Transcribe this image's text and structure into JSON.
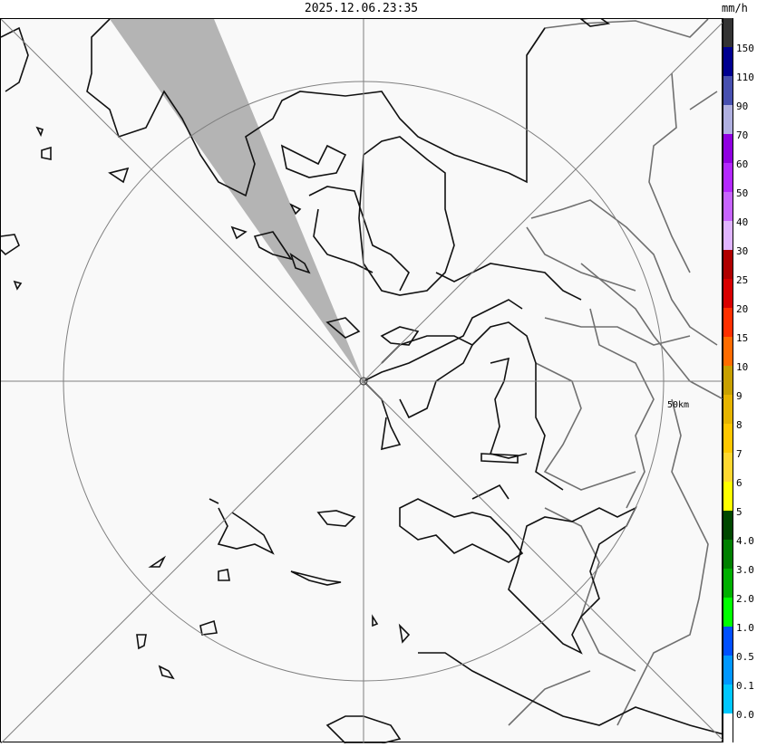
{
  "header": {
    "timestamp": "2025.12.06.23:35",
    "unit": "mm/h"
  },
  "map": {
    "range_ring_label": "50km",
    "blocked_sector_color": "#b4b4b4"
  },
  "legend": [
    {
      "label": "",
      "color": "#333333"
    },
    {
      "label": "150",
      "color": "#000090"
    },
    {
      "label": "110",
      "color": "#4850b0"
    },
    {
      "label": "90",
      "color": "#b0b0e0"
    },
    {
      "label": "70",
      "color": "#9000e0"
    },
    {
      "label": "60",
      "color": "#b428ff"
    },
    {
      "label": "50",
      "color": "#c864ff"
    },
    {
      "label": "40",
      "color": "#e0b4ff"
    },
    {
      "label": "30",
      "color": "#b00000"
    },
    {
      "label": "25",
      "color": "#d80000"
    },
    {
      "label": "20",
      "color": "#ff3000"
    },
    {
      "label": "15",
      "color": "#ff6c00"
    },
    {
      "label": "10",
      "color": "#c8a000"
    },
    {
      "label": "9",
      "color": "#e6b400"
    },
    {
      "label": "8",
      "color": "#ffc800"
    },
    {
      "label": "7",
      "color": "#ffd830"
    },
    {
      "label": "6",
      "color": "#ffff00"
    },
    {
      "label": "5",
      "color": "#004800"
    },
    {
      "label": "4.0",
      "color": "#008000"
    },
    {
      "label": "3.0",
      "color": "#00b000"
    },
    {
      "label": "2.0",
      "color": "#00ff00"
    },
    {
      "label": "1.0",
      "color": "#0050ff"
    },
    {
      "label": "0.5",
      "color": "#0098ff"
    },
    {
      "label": "0.1",
      "color": "#00c8ff"
    },
    {
      "label": "0.0",
      "color": "#ffffff"
    }
  ]
}
